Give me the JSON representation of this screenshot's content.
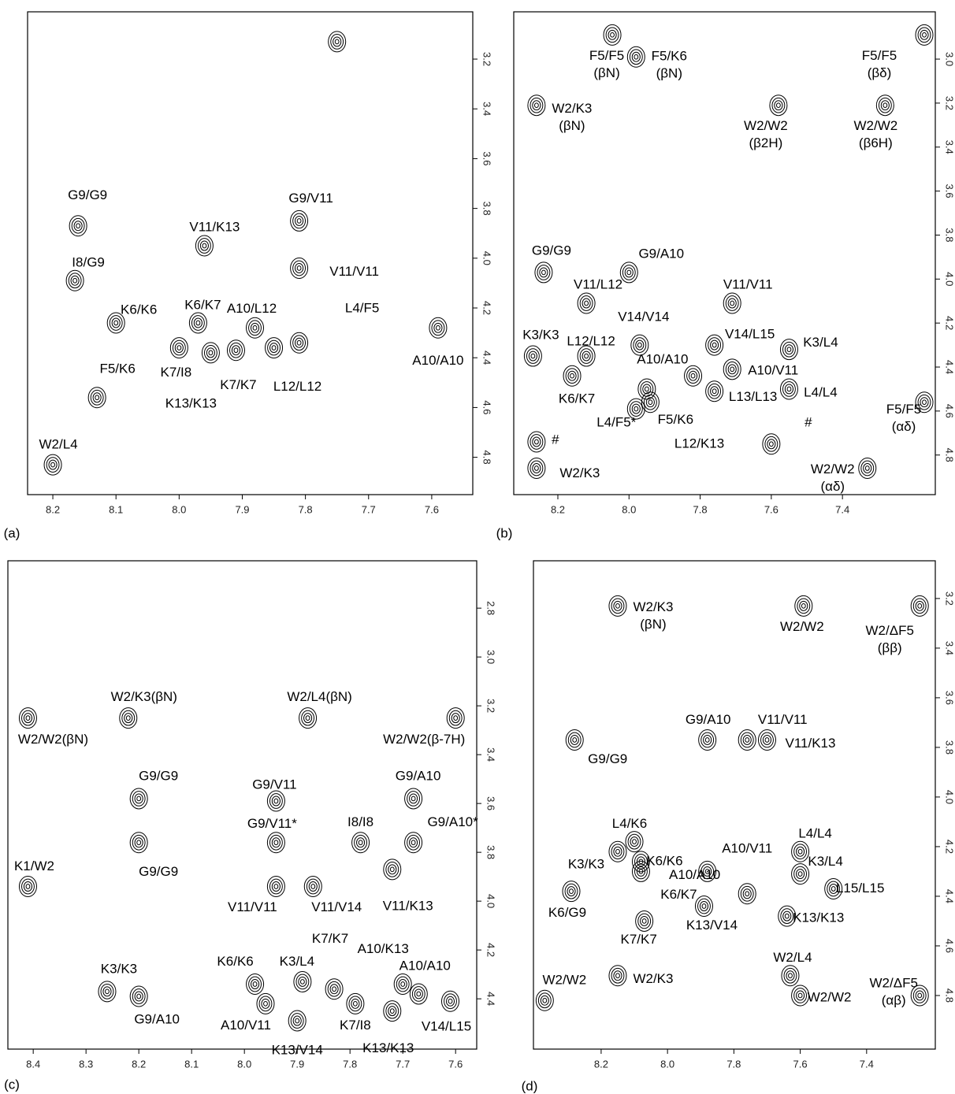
{
  "chart_data": [
    {
      "type": "contour",
      "panel_label": "(a)",
      "xlim": [
        8.24,
        7.535
      ],
      "ylim": [
        3.01,
        4.95
      ],
      "xticks": [
        8.2,
        8.1,
        {
          "value": 8,
          "label": "8.0"
        },
        7.9,
        7.8,
        7.7,
        7.6
      ],
      "yticks": [
        3.2,
        3.4,
        3.6,
        3.8,
        {
          "value": 4,
          "label": "4.0"
        },
        4.2,
        4.4,
        4.6,
        4.8
      ],
      "peaks": [
        {
          "x": 8.16,
          "y": 3.87,
          "label": "G9/G9"
        },
        {
          "x": 8.165,
          "y": 4.09,
          "label": "I8/G9"
        },
        {
          "x": 7.75,
          "y": 3.13
        },
        {
          "x": 7.81,
          "y": 3.85,
          "label": "G9/V11"
        },
        {
          "x": 7.96,
          "y": 3.95,
          "label": "V11/K13"
        },
        {
          "x": 7.81,
          "y": 4.04,
          "label": "V11/V11"
        },
        {
          "x": 8.1,
          "y": 4.26,
          "label": "K6/K6"
        },
        {
          "x": 7.97,
          "y": 4.26,
          "label": "K6/K7"
        },
        {
          "x": 7.88,
          "y": 4.28,
          "label": "A10/L12"
        },
        {
          "x": 7.81,
          "y": 4.34,
          "label": "L4/F5"
        },
        {
          "x": 7.59,
          "y": 4.28,
          "label": "A10/A10"
        },
        {
          "x": 8.0,
          "y": 4.36,
          "label": "K7/I8"
        },
        {
          "x": 7.95,
          "y": 4.38,
          "label": "K13/K13"
        },
        {
          "x": 7.91,
          "y": 4.37,
          "label": "K7/K7"
        },
        {
          "x": 7.85,
          "y": 4.36,
          "label": "L12/L12"
        },
        {
          "x": 8.13,
          "y": 4.56,
          "label": "F5/K6"
        },
        {
          "x": 8.2,
          "y": 4.83,
          "label": "W2/L4"
        }
      ]
    },
    {
      "type": "contour",
      "panel_label": "(b)",
      "xlim": [
        8.324,
        7.139
      ],
      "ylim": [
        2.785,
        4.98
      ],
      "xticks": [
        8.2,
        {
          "value": 8,
          "label": "8.0"
        },
        7.8,
        7.6,
        7.4
      ],
      "yticks": [
        {
          "value": 3,
          "label": "3.0"
        },
        3.2,
        3.4,
        3.6,
        3.8,
        {
          "value": 4,
          "label": "4.0"
        },
        4.2,
        4.4,
        4.6,
        4.8
      ],
      "peaks": [
        {
          "x": 8.047,
          "y": 2.89,
          "label": "F5/F5",
          "note": "(βN)"
        },
        {
          "x": 7.98,
          "y": 2.99,
          "label": "F5/K6",
          "note": "(βN)"
        },
        {
          "x": 7.17,
          "y": 2.89,
          "label": "F5/F5",
          "note": "(βδ)"
        },
        {
          "x": 8.26,
          "y": 3.21,
          "label": "W2/K3",
          "note": "(βN)"
        },
        {
          "x": 7.58,
          "y": 3.21,
          "label": "W2/W2",
          "note": "(β2H)"
        },
        {
          "x": 7.28,
          "y": 3.21,
          "label": "W2/W2",
          "note": "(β6H)"
        },
        {
          "x": 8.24,
          "y": 3.97,
          "label": "G9/G9"
        },
        {
          "x": 8.0,
          "y": 3.97,
          "label": "G9/A10"
        },
        {
          "x": 8.12,
          "y": 4.11,
          "label": "V11/L12"
        },
        {
          "x": 7.71,
          "y": 4.11,
          "label": "V11/V11"
        },
        {
          "x": 7.97,
          "y": 4.3,
          "label": "V14/V14"
        },
        {
          "x": 8.27,
          "y": 4.35,
          "label": "K3/K3"
        },
        {
          "x": 8.12,
          "y": 4.35,
          "label": "L12/L12"
        },
        {
          "x": 7.76,
          "y": 4.3,
          "label": "V14/L15"
        },
        {
          "x": 7.55,
          "y": 4.32,
          "label": "K3/L4"
        },
        {
          "x": 7.95,
          "y": 4.5,
          "label": "A10/A10"
        },
        {
          "x": 7.71,
          "y": 4.41,
          "label": "A10/V11"
        },
        {
          "x": 8.16,
          "y": 4.44,
          "label": "K6/K7"
        },
        {
          "x": 7.76,
          "y": 4.51,
          "label": "L13/L13"
        },
        {
          "x": 7.55,
          "y": 4.5,
          "label": "L4/L4"
        },
        {
          "x": 7.98,
          "y": 4.59,
          "label": "L4/F5*"
        },
        {
          "x": 7.94,
          "y": 4.56,
          "label": "F5/K6"
        },
        {
          "x": 7.17,
          "y": 4.56,
          "label": "F5/F5",
          "note": "(αδ)"
        },
        {
          "x": 7.82,
          "y": 4.44,
          "label": "L12/K13"
        },
        {
          "x": 7.6,
          "y": 4.75,
          "label": "#"
        },
        {
          "x": 8.26,
          "y": 4.74,
          "label": "#"
        },
        {
          "x": 8.26,
          "y": 4.86,
          "label": "W2/K3"
        },
        {
          "x": 7.33,
          "y": 4.86,
          "label": "W2/W2",
          "note": "(αδ)"
        }
      ]
    },
    {
      "type": "contour",
      "panel_label": "(c)",
      "xlim": [
        8.448,
        7.56
      ],
      "ylim": [
        2.606,
        4.606
      ],
      "xticks": [
        8.4,
        8.3,
        8.2,
        8.1,
        {
          "value": 8,
          "label": "8.0"
        },
        7.9,
        7.8,
        7.7,
        7.6
      ],
      "yticks": [
        2.8,
        {
          "value": 3,
          "label": "3.0"
        },
        3.2,
        3.4,
        3.6,
        3.8,
        {
          "value": 4,
          "label": "4.0"
        },
        4.2,
        4.4
      ],
      "peaks": [
        {
          "x": 8.41,
          "y": 3.25,
          "label": "W2/W2(βN)"
        },
        {
          "x": 8.22,
          "y": 3.25,
          "label": "W2/K3(βN)"
        },
        {
          "x": 7.88,
          "y": 3.25,
          "label": "W2/L4(βN)"
        },
        {
          "x": 7.6,
          "y": 3.25,
          "label": "W2/W2(β-7H)"
        },
        {
          "x": 8.2,
          "y": 3.58,
          "label": "G9/G9"
        },
        {
          "x": 8.2,
          "y": 3.76,
          "label": "G9/G9"
        },
        {
          "x": 7.94,
          "y": 3.59,
          "label": "G9/V11"
        },
        {
          "x": 7.68,
          "y": 3.58,
          "label": "G9/A10"
        },
        {
          "x": 7.94,
          "y": 3.76,
          "label": "G9/V11*"
        },
        {
          "x": 7.78,
          "y": 3.76,
          "label": "I8/I8"
        },
        {
          "x": 7.68,
          "y": 3.76,
          "label": "G9/A10*"
        },
        {
          "x": 8.41,
          "y": 3.94,
          "label": "K1/W2"
        },
        {
          "x": 7.94,
          "y": 3.94,
          "label": "V11/V11"
        },
        {
          "x": 7.87,
          "y": 3.94,
          "label": "V11/V14"
        },
        {
          "x": 7.72,
          "y": 3.87,
          "label": "V11/K13"
        },
        {
          "x": 8.26,
          "y": 4.37,
          "label": "K3/K3"
        },
        {
          "x": 8.2,
          "y": 4.39,
          "label": "G9/A10"
        },
        {
          "x": 7.98,
          "y": 4.34,
          "label": "K6/K6"
        },
        {
          "x": 7.89,
          "y": 4.33,
          "label": "K3/L4"
        },
        {
          "x": 7.83,
          "y": 4.36,
          "label": "K7/K7"
        },
        {
          "x": 7.7,
          "y": 4.34,
          "label": "A10/K13"
        },
        {
          "x": 7.67,
          "y": 4.38,
          "label": "A10/A10"
        },
        {
          "x": 7.96,
          "y": 4.42,
          "label": "A10/V11"
        },
        {
          "x": 7.9,
          "y": 4.49,
          "label": "K13/V14"
        },
        {
          "x": 7.79,
          "y": 4.42,
          "label": "K7/I8"
        },
        {
          "x": 7.72,
          "y": 4.45,
          "label": "K13/K13"
        },
        {
          "x": 7.61,
          "y": 4.41,
          "label": "V14/L15"
        }
      ]
    },
    {
      "type": "contour",
      "panel_label": "(d)",
      "xlim": [
        8.404,
        7.193
      ],
      "ylim": [
        3.048,
        5.016
      ],
      "xticks": [
        8.2,
        {
          "value": 8,
          "label": "8.0"
        },
        7.8,
        7.6,
        7.4
      ],
      "yticks": [
        3.2,
        3.4,
        3.6,
        3.8,
        {
          "value": 4,
          "label": "4.0"
        },
        4.2,
        4.4,
        4.6,
        4.8
      ],
      "peaks": [
        {
          "x": 8.15,
          "y": 3.23,
          "label": "W2/K3",
          "note": "(βN)"
        },
        {
          "x": 7.59,
          "y": 3.23,
          "label": "W2/W2"
        },
        {
          "x": 7.24,
          "y": 3.23,
          "label": "W2/ΔF5",
          "note": "(ββ)"
        },
        {
          "x": 8.28,
          "y": 3.77,
          "label": "G9/G9"
        },
        {
          "x": 7.88,
          "y": 3.77,
          "label": "G9/A10"
        },
        {
          "x": 7.76,
          "y": 3.77,
          "label": "V11/V11"
        },
        {
          "x": 7.7,
          "y": 3.77,
          "label": "V11/K13"
        },
        {
          "x": 8.1,
          "y": 4.18,
          "label": "L4/K6"
        },
        {
          "x": 8.15,
          "y": 4.22,
          "label": "K3/K3"
        },
        {
          "x": 8.08,
          "y": 4.26,
          "label": "K6/K6"
        },
        {
          "x": 7.88,
          "y": 4.3,
          "label": "A10/A10"
        },
        {
          "x": 8.08,
          "y": 4.3,
          "label": "K6/K7"
        },
        {
          "x": 8.29,
          "y": 4.38,
          "label": "K6/G9"
        },
        {
          "x": 7.76,
          "y": 4.39,
          "label": "A10/V11"
        },
        {
          "x": 7.6,
          "y": 4.22,
          "label": "L4/L4"
        },
        {
          "x": 7.6,
          "y": 4.31,
          "label": "K3/L4"
        },
        {
          "x": 7.5,
          "y": 4.37,
          "label": "L15/L15"
        },
        {
          "x": 7.64,
          "y": 4.48,
          "label": "K13/K13"
        },
        {
          "x": 7.89,
          "y": 4.44,
          "label": "K13/V14"
        },
        {
          "x": 8.07,
          "y": 4.5,
          "label": "K7/K7"
        },
        {
          "x": 8.37,
          "y": 4.82,
          "label": "W2/W2"
        },
        {
          "x": 8.15,
          "y": 4.72,
          "label": "W2/K3"
        },
        {
          "x": 7.63,
          "y": 4.72,
          "label": "W2/L4"
        },
        {
          "x": 7.6,
          "y": 4.8,
          "label": "W2/W2"
        },
        {
          "x": 7.24,
          "y": 4.8,
          "label": "W2/ΔF5",
          "note": "(αβ)"
        }
      ]
    }
  ]
}
